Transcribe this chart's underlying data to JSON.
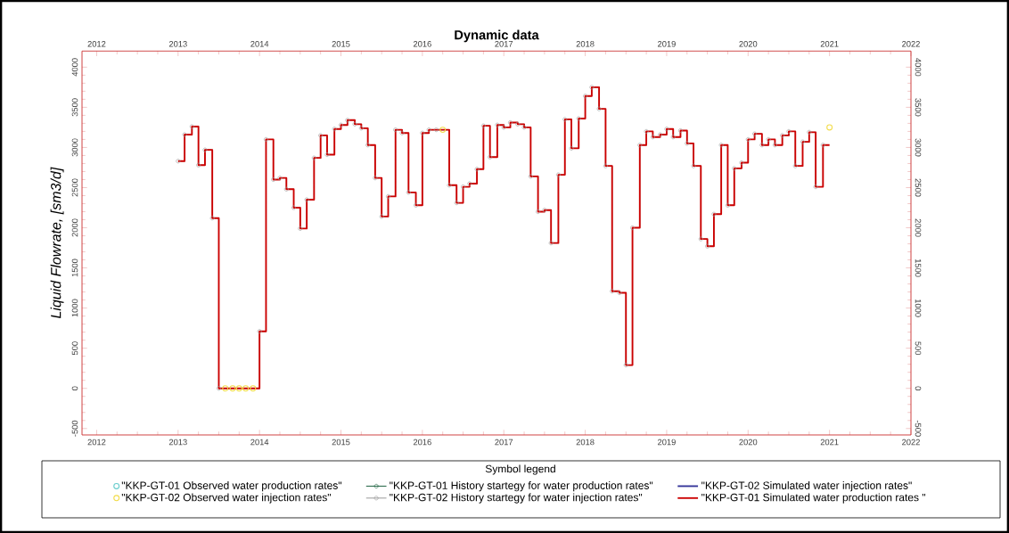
{
  "chart_data": {
    "type": "step",
    "title": "Dynamic data",
    "ylabel": "Liquid Flowrate, [sm3/d]",
    "legend_title": "Symbol legend",
    "legend": "bottom",
    "xlim": [
      2011.82,
      2022.0
    ],
    "xticks": [
      2012,
      2013,
      2014,
      2015,
      2016,
      2017,
      2018,
      2019,
      2020,
      2021,
      2022
    ],
    "x2lim": [
      2011.82,
      2022.0
    ],
    "x2ticks": [
      2012,
      2013,
      2014,
      2015,
      2016,
      2017,
      2018,
      2019,
      2020,
      2021,
      2022
    ],
    "ylim": [
      -580,
      4200
    ],
    "yticks": [
      -500,
      0,
      500,
      1000,
      1500,
      2000,
      2500,
      3000,
      3500,
      4000
    ],
    "y2lim": [
      -580,
      4200
    ],
    "y2ticks": [
      -500,
      0,
      500,
      1000,
      1500,
      2000,
      2500,
      3000,
      3500,
      4000
    ],
    "series": [
      {
        "name": "\"KKP-GT-01 Observed water production rates\"",
        "type": "scatter",
        "marker": "circle",
        "color": "#66cccc"
      },
      {
        "name": "\"KKP-GT-02 Observed water injection rates\"",
        "type": "scatter",
        "marker": "circle",
        "color": "#f2dc4a",
        "x": [
          2013.58,
          2013.67,
          2013.75,
          2013.83,
          2013.92,
          2016.25,
          2021.0
        ],
        "values": [
          0,
          0,
          0,
          0,
          0,
          3220,
          3250
        ]
      },
      {
        "name": "\"KKP-GT-01 History startegy for water production rates\"",
        "marker": "circle",
        "color": "#2f6f4f"
      },
      {
        "name": "\"KKP-GT-02 History startegy for water injection rates\"",
        "marker": "circle",
        "color": "#a0a0a0",
        "x": [
          2013.0,
          2013.08,
          2013.17,
          2013.25,
          2013.33,
          2013.42,
          2013.5,
          2014.0,
          2014.08,
          2014.17,
          2014.25,
          2014.33,
          2014.42,
          2014.5,
          2014.58,
          2014.67,
          2014.75,
          2014.83,
          2014.92,
          2015.0,
          2015.08,
          2015.17,
          2015.25,
          2015.33,
          2015.42,
          2015.5,
          2015.58,
          2015.67,
          2015.75,
          2015.83,
          2015.92,
          2016.0,
          2016.08,
          2016.17,
          2016.33,
          2016.42,
          2016.5,
          2016.58,
          2016.67,
          2016.75,
          2016.83,
          2016.92,
          2017.0,
          2017.08,
          2017.17,
          2017.25,
          2017.33,
          2017.42,
          2017.5,
          2017.58,
          2017.67,
          2017.75,
          2017.83,
          2017.92,
          2018.0,
          2018.08,
          2018.17,
          2018.25,
          2018.33,
          2018.42,
          2018.5,
          2018.58,
          2018.67,
          2018.75,
          2018.83,
          2018.92,
          2019.0,
          2019.08,
          2019.17,
          2019.25,
          2019.33,
          2019.42,
          2019.5,
          2019.58,
          2019.67,
          2019.75,
          2019.83,
          2019.92,
          2020.0,
          2020.08,
          2020.17,
          2020.25,
          2020.33,
          2020.42,
          2020.5,
          2020.58,
          2020.67,
          2020.75,
          2020.83,
          2020.92
        ],
        "values": [
          2830,
          3160,
          3260,
          2780,
          2970,
          2120,
          0,
          710,
          3100,
          2600,
          2620,
          2480,
          2250,
          1990,
          2350,
          2870,
          3150,
          2910,
          3230,
          3280,
          3340,
          3290,
          3240,
          3030,
          2620,
          2140,
          2390,
          3220,
          3180,
          2440,
          2280,
          3180,
          3220,
          3220,
          2530,
          2310,
          2510,
          2550,
          2730,
          3270,
          2880,
          3280,
          3250,
          3310,
          3290,
          3250,
          2640,
          2200,
          2220,
          1810,
          2660,
          3350,
          2990,
          3360,
          3640,
          3750,
          3480,
          2770,
          1210,
          1190,
          290,
          2000,
          3030,
          3200,
          3130,
          3160,
          3230,
          3130,
          3210,
          3050,
          2770,
          1860,
          1770,
          2170,
          3030,
          2280,
          2740,
          2810,
          3100,
          3170,
          3030,
          3100,
          3030,
          3150,
          3200,
          2770,
          3070,
          3190,
          2510,
          3030
        ]
      },
      {
        "name": "\"KKP-GT-02 Simulated water injection rates\"",
        "marker": "none",
        "color": "#333399"
      },
      {
        "name": "\"KKP-GT-01 Simulated water production rates \"",
        "marker": "none",
        "color": "#cc0000",
        "x": [
          2013.0,
          2013.08,
          2013.17,
          2013.25,
          2013.33,
          2013.42,
          2013.5,
          2014.0,
          2014.08,
          2014.17,
          2014.25,
          2014.33,
          2014.42,
          2014.5,
          2014.58,
          2014.67,
          2014.75,
          2014.83,
          2014.92,
          2015.0,
          2015.08,
          2015.17,
          2015.25,
          2015.33,
          2015.42,
          2015.5,
          2015.58,
          2015.67,
          2015.75,
          2015.83,
          2015.92,
          2016.0,
          2016.08,
          2016.17,
          2016.33,
          2016.42,
          2016.5,
          2016.58,
          2016.67,
          2016.75,
          2016.83,
          2016.92,
          2017.0,
          2017.08,
          2017.17,
          2017.25,
          2017.33,
          2017.42,
          2017.5,
          2017.58,
          2017.67,
          2017.75,
          2017.83,
          2017.92,
          2018.0,
          2018.08,
          2018.17,
          2018.25,
          2018.33,
          2018.42,
          2018.5,
          2018.58,
          2018.67,
          2018.75,
          2018.83,
          2018.92,
          2019.0,
          2019.08,
          2019.17,
          2019.25,
          2019.33,
          2019.42,
          2019.5,
          2019.58,
          2019.67,
          2019.75,
          2019.83,
          2019.92,
          2020.0,
          2020.08,
          2020.17,
          2020.25,
          2020.33,
          2020.42,
          2020.5,
          2020.58,
          2020.67,
          2020.75,
          2020.83,
          2020.92,
          2021.0
        ],
        "values": [
          2830,
          3160,
          3260,
          2780,
          2970,
          2120,
          0,
          710,
          3100,
          2600,
          2620,
          2480,
          2250,
          1990,
          2350,
          2870,
          3150,
          2910,
          3230,
          3280,
          3340,
          3290,
          3240,
          3030,
          2620,
          2140,
          2390,
          3220,
          3180,
          2440,
          2280,
          3180,
          3220,
          3220,
          2530,
          2310,
          2510,
          2550,
          2730,
          3270,
          2880,
          3280,
          3250,
          3310,
          3290,
          3250,
          2640,
          2200,
          2220,
          1810,
          2660,
          3350,
          2990,
          3360,
          3640,
          3750,
          3480,
          2770,
          1210,
          1190,
          290,
          2000,
          3030,
          3200,
          3130,
          3160,
          3230,
          3130,
          3210,
          3050,
          2770,
          1860,
          1770,
          2170,
          3030,
          2280,
          2740,
          2810,
          3100,
          3170,
          3030,
          3100,
          3030,
          3150,
          3200,
          2770,
          3070,
          3190,
          2510,
          3030,
          3030
        ]
      }
    ]
  }
}
